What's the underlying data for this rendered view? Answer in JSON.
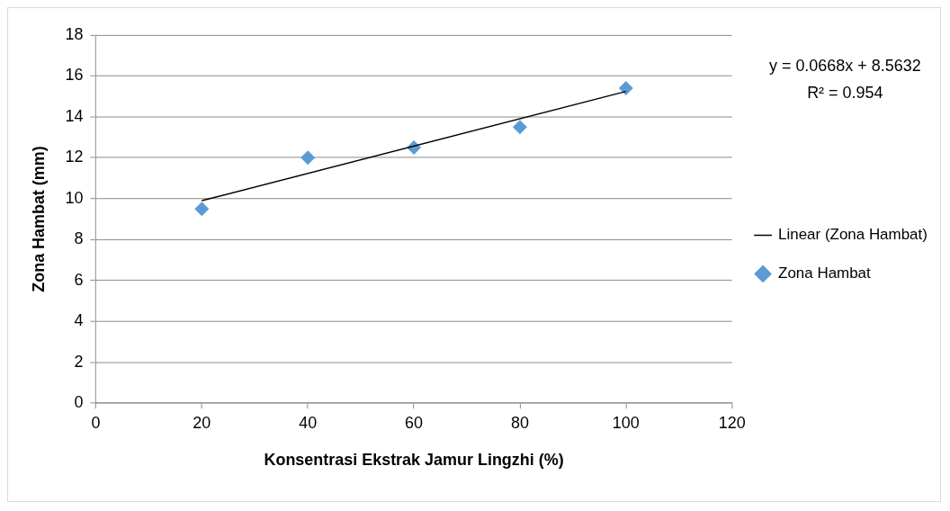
{
  "chart_data": {
    "type": "scatter",
    "xlabel": "Konsentrasi Ekstrak Jamur Lingzhi (%)",
    "ylabel": "Zona Hambat (mm)",
    "x": [
      20,
      40,
      60,
      80,
      100
    ],
    "series": [
      {
        "name": "Zona Hambat",
        "color": "#5b9bd5",
        "marker": "diamond",
        "values": [
          9.5,
          12,
          12.5,
          13.5,
          15.4
        ]
      },
      {
        "name": "Linear (Zona Hambat)",
        "type": "line",
        "color": "#000000",
        "marker": "none",
        "x": [
          20,
          100
        ],
        "values": [
          9.9,
          15.24
        ]
      }
    ],
    "xlim": [
      0,
      120
    ],
    "xticks": [
      0,
      20,
      40,
      60,
      80,
      100,
      120
    ],
    "ylim": [
      0,
      18
    ],
    "yticks": [
      0,
      2,
      4,
      6,
      8,
      10,
      12,
      14,
      16,
      18
    ],
    "grid": "y",
    "legend": "right",
    "annotations": [
      "y = 0.0668x + 8.5632",
      "R² = 0.954"
    ]
  }
}
